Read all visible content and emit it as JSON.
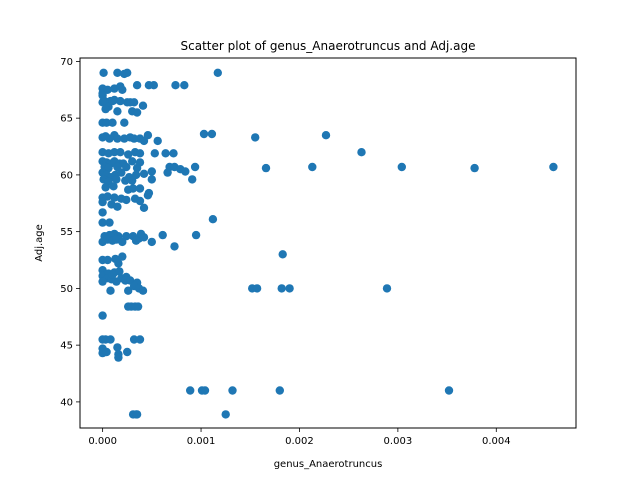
{
  "chart_data": {
    "type": "scatter",
    "title": "Scatter plot of genus_Anaerotruncus and Adj.age",
    "xlabel": "genus_Anaerotruncus",
    "ylabel": "Adj.age",
    "xlim": [
      -0.00023,
      0.00481
    ],
    "ylim": [
      37.7,
      70.3
    ],
    "xticks": [
      0.0,
      0.001,
      0.002,
      0.003,
      0.004
    ],
    "xtick_labels": [
      "0.000",
      "0.001",
      "0.002",
      "0.003",
      "0.004"
    ],
    "yticks": [
      40,
      45,
      50,
      55,
      60,
      65,
      70
    ],
    "ytick_labels": [
      "40",
      "45",
      "50",
      "55",
      "60",
      "65",
      "70"
    ],
    "grid": false,
    "marker_color": "#1f77b4",
    "points": [
      [
        1e-05,
        69.0
      ],
      [
        0.00015,
        69.0
      ],
      [
        0.00022,
        68.9
      ],
      [
        0.00025,
        69.0
      ],
      [
        0.00117,
        69.0
      ],
      [
        0.0,
        67.6
      ],
      [
        0.0,
        67.2
      ],
      [
        5e-05,
        67.5
      ],
      [
        0.00012,
        67.6
      ],
      [
        0.00018,
        67.8
      ],
      [
        0.0002,
        67.5
      ],
      [
        0.00035,
        67.9
      ],
      [
        0.00047,
        67.9
      ],
      [
        0.00052,
        67.9
      ],
      [
        0.00074,
        67.9
      ],
      [
        0.00083,
        67.9
      ],
      [
        0.0,
        67.0
      ],
      [
        0.0,
        66.4
      ],
      [
        2e-05,
        66.5
      ],
      [
        8e-05,
        66.5
      ],
      [
        0.00012,
        66.6
      ],
      [
        0.00018,
        66.5
      ],
      [
        0.00025,
        66.4
      ],
      [
        0.00028,
        66.4
      ],
      [
        0.00032,
        66.4
      ],
      [
        0.00041,
        66.1
      ],
      [
        6e-05,
        66.0
      ],
      [
        0.0001,
        66.5
      ],
      [
        3e-05,
        65.8
      ],
      [
        0.00015,
        65.6
      ],
      [
        0.0003,
        65.6
      ],
      [
        0.00035,
        65.5
      ],
      [
        0.0,
        64.6
      ],
      [
        4e-05,
        64.6
      ],
      [
        0.0001,
        64.6
      ],
      [
        0.00022,
        64.6
      ],
      [
        0.0,
        63.3
      ],
      [
        3e-05,
        63.4
      ],
      [
        7e-05,
        63.2
      ],
      [
        0.00012,
        63.5
      ],
      [
        0.00015,
        63.2
      ],
      [
        0.00022,
        63.2
      ],
      [
        0.00028,
        63.3
      ],
      [
        0.00032,
        63.2
      ],
      [
        0.00038,
        63.2
      ],
      [
        0.00042,
        63.0
      ],
      [
        0.00046,
        63.5
      ],
      [
        0.00056,
        63.0
      ],
      [
        0.00103,
        63.6
      ],
      [
        0.00111,
        63.6
      ],
      [
        0.00155,
        63.3
      ],
      [
        0.00227,
        63.5
      ],
      [
        0.0,
        62.0
      ],
      [
        6e-05,
        61.9
      ],
      [
        0.00012,
        62.0
      ],
      [
        0.00018,
        62.0
      ],
      [
        0.00026,
        61.8
      ],
      [
        0.00033,
        62.0
      ],
      [
        0.00038,
        61.9
      ],
      [
        0.00053,
        61.9
      ],
      [
        0.00064,
        61.9
      ],
      [
        0.00072,
        61.9
      ],
      [
        0.00263,
        62.0
      ],
      [
        0.0,
        61.2
      ],
      [
        4e-05,
        61.1
      ],
      [
        8e-05,
        61.0
      ],
      [
        0.00012,
        61.2
      ],
      [
        0.00017,
        61.0
      ],
      [
        0.00021,
        61.0
      ],
      [
        0.0003,
        61.2
      ],
      [
        0.00038,
        61.1
      ],
      [
        2e-05,
        60.7
      ],
      [
        6e-05,
        60.6
      ],
      [
        0.00015,
        60.7
      ],
      [
        0.00024,
        60.7
      ],
      [
        0.00035,
        60.6
      ],
      [
        0.00068,
        60.7
      ],
      [
        0.00073,
        60.7
      ],
      [
        0.00079,
        60.5
      ],
      [
        0.00084,
        60.3
      ],
      [
        0.00094,
        60.7
      ],
      [
        0.00166,
        60.6
      ],
      [
        0.00213,
        60.7
      ],
      [
        0.00304,
        60.7
      ],
      [
        0.00378,
        60.6
      ],
      [
        0.00458,
        60.7
      ],
      [
        0.0,
        60.2
      ],
      [
        4e-05,
        60.0
      ],
      [
        9e-05,
        59.8
      ],
      [
        0.00013,
        60.0
      ],
      [
        0.00019,
        60.2
      ],
      [
        0.00027,
        59.8
      ],
      [
        0.00034,
        60.0
      ],
      [
        0.00042,
        60.1
      ],
      [
        0.0005,
        60.3
      ],
      [
        0.00066,
        60.2
      ],
      [
        1e-05,
        59.6
      ],
      [
        6e-05,
        59.4
      ],
      [
        0.00014,
        59.6
      ],
      [
        0.00023,
        59.5
      ],
      [
        0.0003,
        59.5
      ],
      [
        0.0005,
        59.6
      ],
      [
        0.00091,
        59.6
      ],
      [
        3e-05,
        58.9
      ],
      [
        0.00011,
        59.0
      ],
      [
        0.00026,
        58.7
      ],
      [
        0.00031,
        58.8
      ],
      [
        0.00038,
        58.8
      ],
      [
        0.00047,
        58.4
      ],
      [
        0.0,
        58.0
      ],
      [
        5e-05,
        58.1
      ],
      [
        0.00012,
        58.0
      ],
      [
        0.00019,
        57.9
      ],
      [
        0.00024,
        57.8
      ],
      [
        0.00033,
        57.9
      ],
      [
        0.00038,
        57.7
      ],
      [
        0.00046,
        58.2
      ],
      [
        0.0,
        57.6
      ],
      [
        9e-05,
        57.4
      ],
      [
        0.00015,
        57.2
      ],
      [
        0.00042,
        57.1
      ],
      [
        0.0,
        56.7
      ],
      [
        0.00112,
        56.1
      ],
      [
        0.0,
        55.8
      ],
      [
        7e-05,
        55.8
      ],
      [
        2e-05,
        54.6
      ],
      [
        7e-05,
        54.7
      ],
      [
        0.00012,
        54.8
      ],
      [
        0.00016,
        54.6
      ],
      [
        0.00024,
        54.6
      ],
      [
        0.00031,
        54.6
      ],
      [
        0.00037,
        54.4
      ],
      [
        0.00039,
        54.8
      ],
      [
        0.00061,
        54.7
      ],
      [
        0.00095,
        54.7
      ],
      [
        0.0,
        54.1
      ],
      [
        5e-05,
        54.3
      ],
      [
        0.0001,
        54.2
      ],
      [
        0.00014,
        54.3
      ],
      [
        0.0002,
        54.1
      ],
      [
        0.00034,
        54.2
      ],
      [
        0.00042,
        54.5
      ],
      [
        0.0005,
        54.1
      ],
      [
        0.00073,
        53.7
      ],
      [
        0.00183,
        53.0
      ],
      [
        0.0,
        52.5
      ],
      [
        5e-05,
        52.5
      ],
      [
        0.00013,
        52.6
      ],
      [
        0.00016,
        52.2
      ],
      [
        0.0002,
        52.8
      ],
      [
        0.0,
        51.6
      ],
      [
        0.0,
        51.1
      ],
      [
        6e-05,
        51.3
      ],
      [
        0.00012,
        51.4
      ],
      [
        0.00017,
        51.5
      ],
      [
        0.00019,
        50.9
      ],
      [
        0.00024,
        51.0
      ],
      [
        5e-05,
        50.9
      ],
      [
        9e-05,
        50.8
      ],
      [
        0.0001,
        51.2
      ],
      [
        0.0,
        50.6
      ],
      [
        0.00014,
        50.6
      ],
      [
        0.00023,
        50.7
      ],
      [
        0.00028,
        50.7
      ],
      [
        0.00034,
        50.4
      ],
      [
        0.00035,
        50.5
      ],
      [
        8e-05,
        49.8
      ],
      [
        0.00026,
        49.8
      ],
      [
        0.00032,
        50.2
      ],
      [
        0.00037,
        50.0
      ],
      [
        0.00041,
        49.8
      ],
      [
        0.00152,
        50.0
      ],
      [
        0.00157,
        50.0
      ],
      [
        0.00182,
        50.0
      ],
      [
        0.0019,
        50.0
      ],
      [
        0.00289,
        50.0
      ],
      [
        0.00026,
        48.4
      ],
      [
        0.00029,
        48.4
      ],
      [
        0.00033,
        48.4
      ],
      [
        0.00036,
        48.4
      ],
      [
        0.0,
        47.6
      ],
      [
        0.0,
        45.5
      ],
      [
        3e-05,
        45.5
      ],
      [
        8e-05,
        45.5
      ],
      [
        0.00032,
        45.5
      ],
      [
        0.00038,
        45.5
      ],
      [
        0.0,
        44.7
      ],
      [
        0.0,
        44.3
      ],
      [
        4e-05,
        44.4
      ],
      [
        0.00015,
        44.8
      ],
      [
        0.00016,
        44.2
      ],
      [
        0.00016,
        43.9
      ],
      [
        0.00025,
        44.4
      ],
      [
        0.00089,
        41.0
      ],
      [
        0.00101,
        41.0
      ],
      [
        0.00104,
        41.0
      ],
      [
        0.00132,
        41.0
      ],
      [
        0.0018,
        41.0
      ],
      [
        0.00352,
        41.0
      ],
      [
        0.00031,
        38.9
      ],
      [
        0.00034,
        38.9
      ],
      [
        0.00035,
        38.9
      ],
      [
        0.00125,
        38.9
      ]
    ]
  }
}
